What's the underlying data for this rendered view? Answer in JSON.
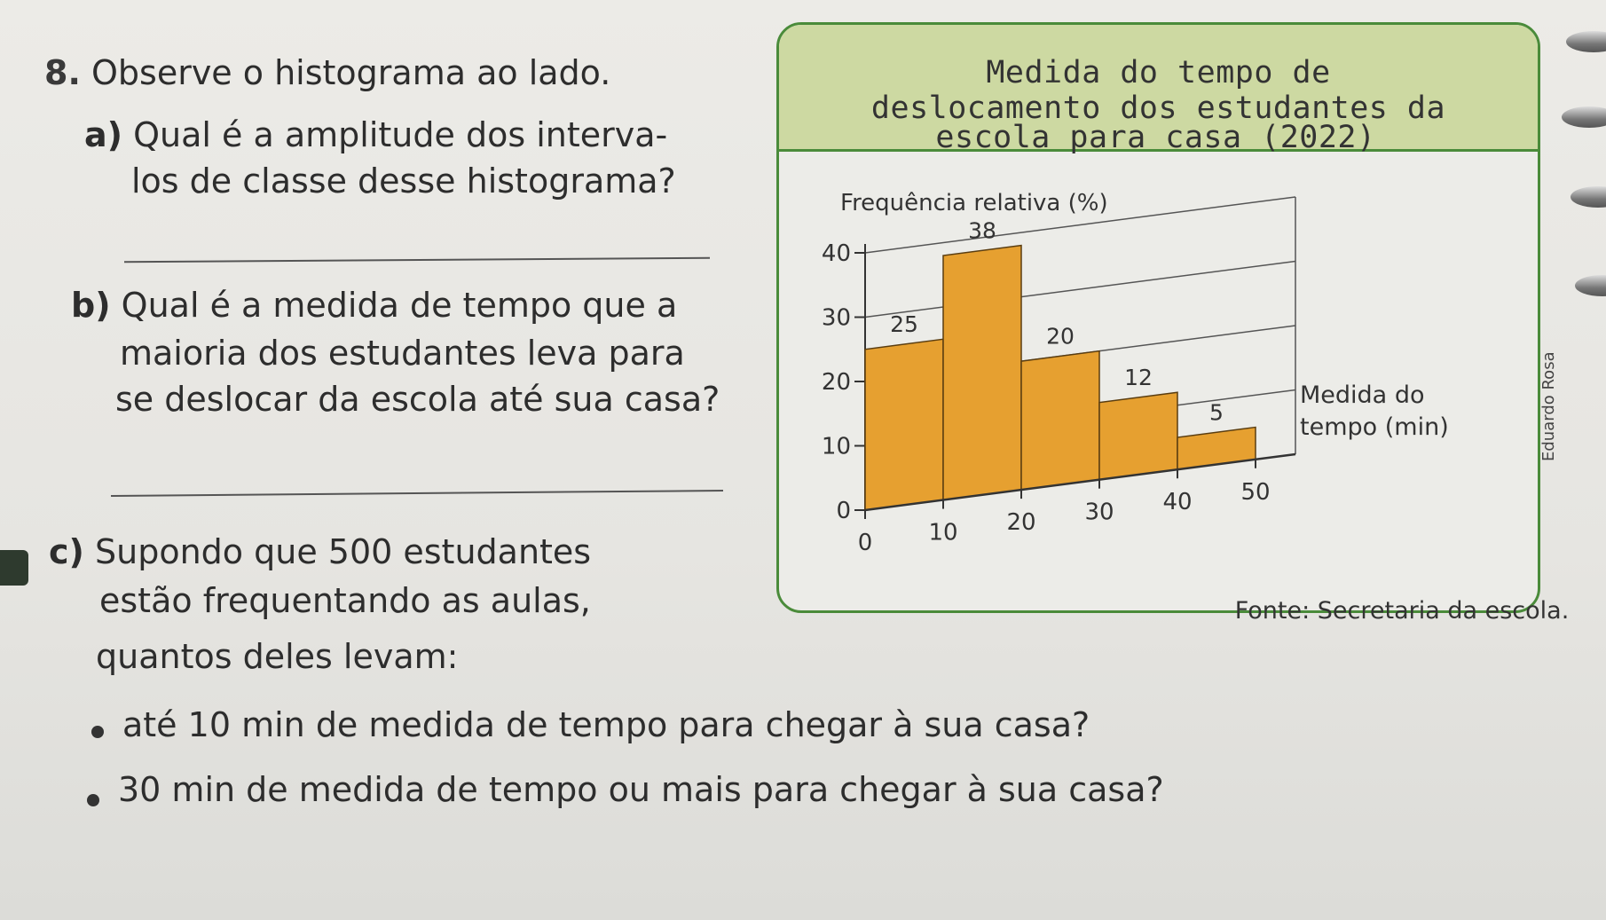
{
  "exercise": {
    "number": "8.",
    "intro": "Observe o histograma ao lado.",
    "a": {
      "label": "a)",
      "line1": "Qual é a amplitude dos interva-",
      "line2": "los de classe desse histograma?"
    },
    "b": {
      "label": "b)",
      "line1": "Qual é a medida de tempo que a",
      "line2": "maioria dos estudantes leva para",
      "line3": "se deslocar da escola até sua casa?"
    },
    "c": {
      "label": "c)",
      "line1": "Supondo que 500 estudantes",
      "line2": "estão frequentando as aulas,",
      "line3": "quantos deles levam:",
      "bullets": [
        "até 10 min de medida de tempo para chegar à sua casa?",
        "30 min de medida de tempo ou mais para chegar à sua casa?"
      ]
    }
  },
  "chart_data": {
    "type": "bar",
    "title": "Medida do tempo de deslocamento dos estudantes da escola para casa (2022)",
    "title_lines": [
      "Medida do tempo de",
      "deslocamento dos estudantes da",
      "escola para casa (2022)"
    ],
    "ylabel": "Frequência relativa (%)",
    "xlabel_lines": [
      "Medida do",
      "tempo (min)"
    ],
    "x_ticks": [
      "0",
      "10",
      "20",
      "30",
      "40",
      "50"
    ],
    "y_ticks": [
      "0",
      "10",
      "20",
      "30",
      "40"
    ],
    "ylim": [
      0,
      40
    ],
    "xlim": [
      0,
      50
    ],
    "bins": [
      [
        0,
        10
      ],
      [
        10,
        20
      ],
      [
        20,
        30
      ],
      [
        30,
        40
      ],
      [
        40,
        50
      ]
    ],
    "values": [
      25,
      38,
      20,
      12,
      5
    ],
    "value_labels": [
      "25",
      "38",
      "20",
      "12",
      "5"
    ],
    "bar_color": "#e6a030",
    "grid": true,
    "source": "Fonte: Secretaria da escola.",
    "credit": "Eduardo Rosa"
  }
}
